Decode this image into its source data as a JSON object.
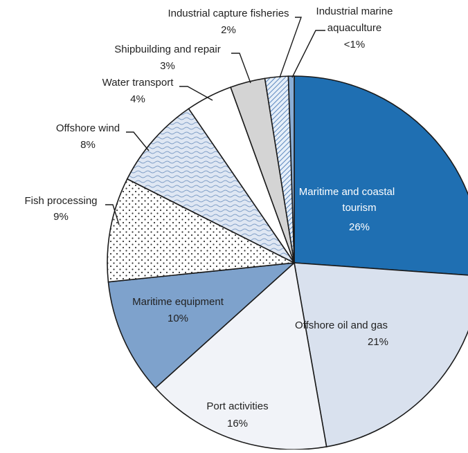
{
  "chart_data": {
    "type": "pie",
    "slices": [
      {
        "label": "Maritime and coastal tourism",
        "value_label": "26%",
        "value": 26,
        "color": "#1f6fb2",
        "pattern": "solid"
      },
      {
        "label": "Offshore oil and gas",
        "value_label": "21%",
        "value": 21,
        "color": "#d9e1ee",
        "pattern": "solid"
      },
      {
        "label": "Port activities",
        "value_label": "16%",
        "value": 16,
        "color": "#f1f3f8",
        "pattern": "solid"
      },
      {
        "label": "Maritime equipment",
        "value_label": "10%",
        "value": 10,
        "color": "#7ea2cc",
        "pattern": "solid"
      },
      {
        "label": "Fish processing",
        "value_label": "9%",
        "value": 9,
        "color": "#ffffff",
        "pattern": "dots"
      },
      {
        "label": "Offshore wind",
        "value_label": "8%",
        "value": 8,
        "color": "#dfe7f3",
        "pattern": "waves"
      },
      {
        "label": "Water transport",
        "value_label": "4%",
        "value": 4,
        "color": "#ffffff",
        "pattern": "solid"
      },
      {
        "label": "Shipbuilding and repair",
        "value_label": "3%",
        "value": 3,
        "color": "#d4d4d4",
        "pattern": "solid"
      },
      {
        "label": "Industrial capture fisheries",
        "value_label": "2%",
        "value": 2,
        "color": "#cfe0f2",
        "pattern": "hatch"
      },
      {
        "label": "Industrial marine aquaculture",
        "value_label": "<1%",
        "value": 0.5,
        "color": "#8aaed6",
        "pattern": "solid"
      }
    ]
  }
}
